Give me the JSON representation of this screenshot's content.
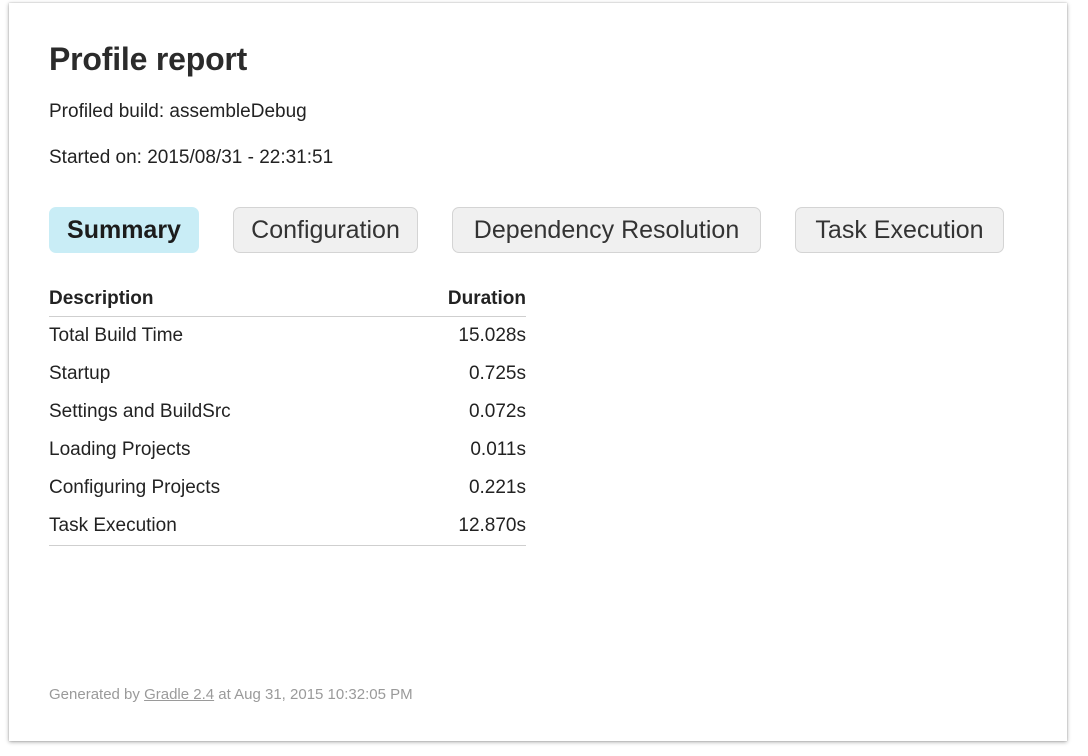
{
  "header": {
    "title": "Profile report",
    "profiled_build": "Profiled build: assembleDebug",
    "started_on": "Started on: 2015/08/31 - 22:31:51"
  },
  "tabs": [
    {
      "label": "Summary",
      "selected": true
    },
    {
      "label": "Configuration",
      "selected": false
    },
    {
      "label": "Dependency Resolution",
      "selected": false
    },
    {
      "label": "Task Execution",
      "selected": false
    }
  ],
  "summary_table": {
    "columns": [
      "Description",
      "Duration"
    ],
    "rows": [
      {
        "description": "Total Build Time",
        "duration": "15.028s"
      },
      {
        "description": "Startup",
        "duration": "0.725s"
      },
      {
        "description": "Settings and BuildSrc",
        "duration": "0.072s"
      },
      {
        "description": "Loading Projects",
        "duration": "0.011s"
      },
      {
        "description": "Configuring Projects",
        "duration": "0.221s"
      },
      {
        "description": "Task Execution",
        "duration": "12.870s"
      }
    ]
  },
  "footer": {
    "prefix": "Generated by ",
    "link_text": "Gradle 2.4",
    "suffix": " at Aug 31, 2015 10:32:05 PM"
  },
  "colors": {
    "selected_tab": "#c9edf6",
    "tab_background": "#f0f0f0",
    "footer_text": "#9a9a9a"
  }
}
